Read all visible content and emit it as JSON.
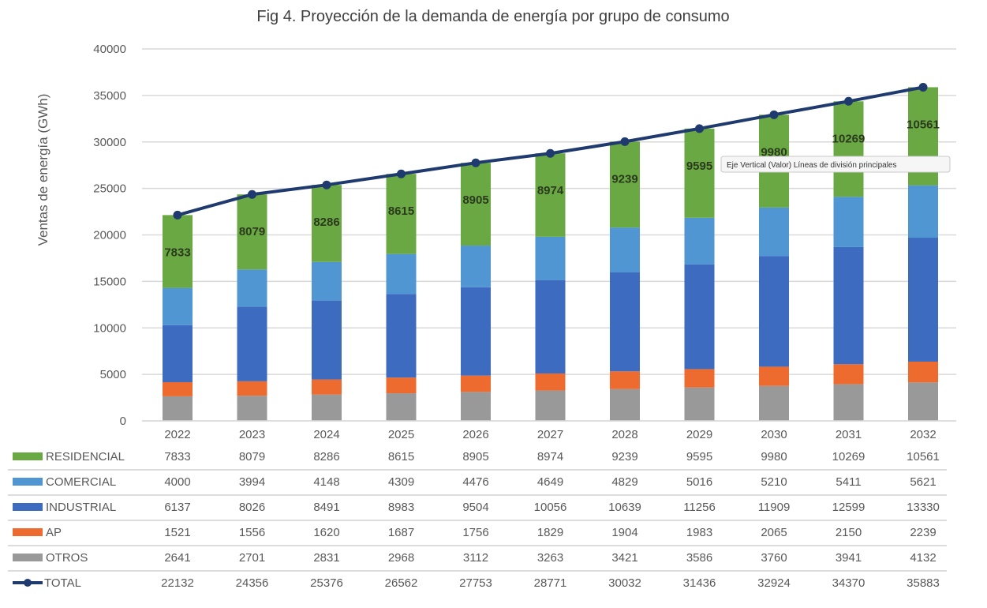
{
  "chart_data": {
    "type": "bar",
    "stacked": true,
    "title": "Fig 4. Proyección de la demanda de energía por grupo de consumo",
    "xlabel": "",
    "ylabel": "Ventas de energía (GWh)",
    "ylim": [
      0,
      40000
    ],
    "yticks": [
      0,
      5000,
      10000,
      15000,
      20000,
      25000,
      30000,
      35000,
      40000
    ],
    "grid": true,
    "legend": "data-table-bottom",
    "categories": [
      "2022",
      "2023",
      "2024",
      "2025",
      "2026",
      "2027",
      "2028",
      "2029",
      "2030",
      "2031",
      "2032"
    ],
    "series": [
      {
        "name": "OTROS",
        "color": "#999999",
        "values": [
          2641,
          2701,
          2831,
          2968,
          3112,
          3263,
          3421,
          3586,
          3760,
          3941,
          4132
        ]
      },
      {
        "name": "AP",
        "color": "#ee6b2f",
        "values": [
          1521,
          1556,
          1620,
          1687,
          1756,
          1829,
          1904,
          1983,
          2065,
          2150,
          2239
        ]
      },
      {
        "name": "INDUSTRIAL",
        "color": "#3c6bbf",
        "values": [
          6137,
          8026,
          8491,
          8983,
          9504,
          10056,
          10639,
          11256,
          11909,
          12599,
          13330
        ]
      },
      {
        "name": "COMERCIAL",
        "color": "#5096d3",
        "values": [
          4000,
          3994,
          4148,
          4309,
          4476,
          4649,
          4829,
          5016,
          5210,
          5411,
          5621
        ]
      },
      {
        "name": "RESIDENCIAL",
        "color": "#6aa843",
        "values": [
          7833,
          8079,
          8286,
          8615,
          8905,
          8974,
          9239,
          9595,
          9980,
          10269,
          10561
        ]
      }
    ],
    "line_series": {
      "name": "TOTAL",
      "type": "line",
      "color": "#1f3a6e",
      "values": [
        22132,
        24356,
        25376,
        26562,
        27753,
        28771,
        30032,
        31436,
        32924,
        34370,
        35883
      ]
    },
    "data_labels_series": "RESIDENCIAL",
    "table_order": [
      "RESIDENCIAL",
      "COMERCIAL",
      "INDUSTRIAL",
      "AP",
      "OTROS",
      "TOTAL"
    ],
    "annotations": [
      "Eje Vertical (Valor)  Líneas de división principales"
    ]
  }
}
